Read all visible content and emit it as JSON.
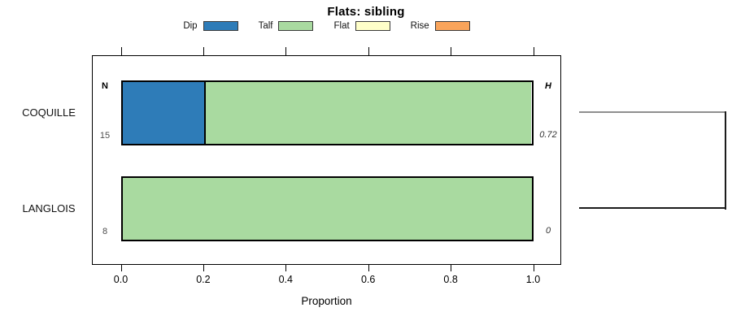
{
  "chart_data": {
    "type": "bar",
    "orientation": "horizontal",
    "stacked": true,
    "title": "Flats: sibling",
    "xlabel": "Proportion",
    "xlim": [
      0.0,
      1.0
    ],
    "xticks": [
      0.0,
      0.2,
      0.4,
      0.6,
      0.8,
      1.0
    ],
    "xtick_labels": [
      "0.0",
      "0.2",
      "0.4",
      "0.6",
      "0.8",
      "1.0"
    ],
    "grid": false,
    "legend_position": "top",
    "legend_entries": [
      "Dip",
      "Talf",
      "Flat",
      "Rise"
    ],
    "colors": {
      "Dip": "#2E7CB8",
      "Talf": "#A9DAA0",
      "Flat": "#FFFFC9",
      "Rise": "#F9A45B"
    },
    "categories": [
      "COQUILLE",
      "LANGLOIS"
    ],
    "series": [
      {
        "name": "Dip",
        "values": [
          0.2,
          0.0
        ]
      },
      {
        "name": "Talf",
        "values": [
          0.8,
          1.0
        ]
      },
      {
        "name": "Flat",
        "values": [
          0.0,
          0.0
        ]
      },
      {
        "name": "Rise",
        "values": [
          0.0,
          0.0
        ]
      }
    ],
    "annotations": {
      "n_header": "N",
      "h_header": "H",
      "n_values": [
        "15",
        "8"
      ],
      "h_values": [
        "0.72",
        "0"
      ]
    },
    "cluster_bracket": {
      "present": true,
      "joins": [
        "COQUILLE",
        "LANGLOIS"
      ],
      "top_line_color": "#8f8f8f",
      "line_color": "#1c1c1c"
    }
  }
}
